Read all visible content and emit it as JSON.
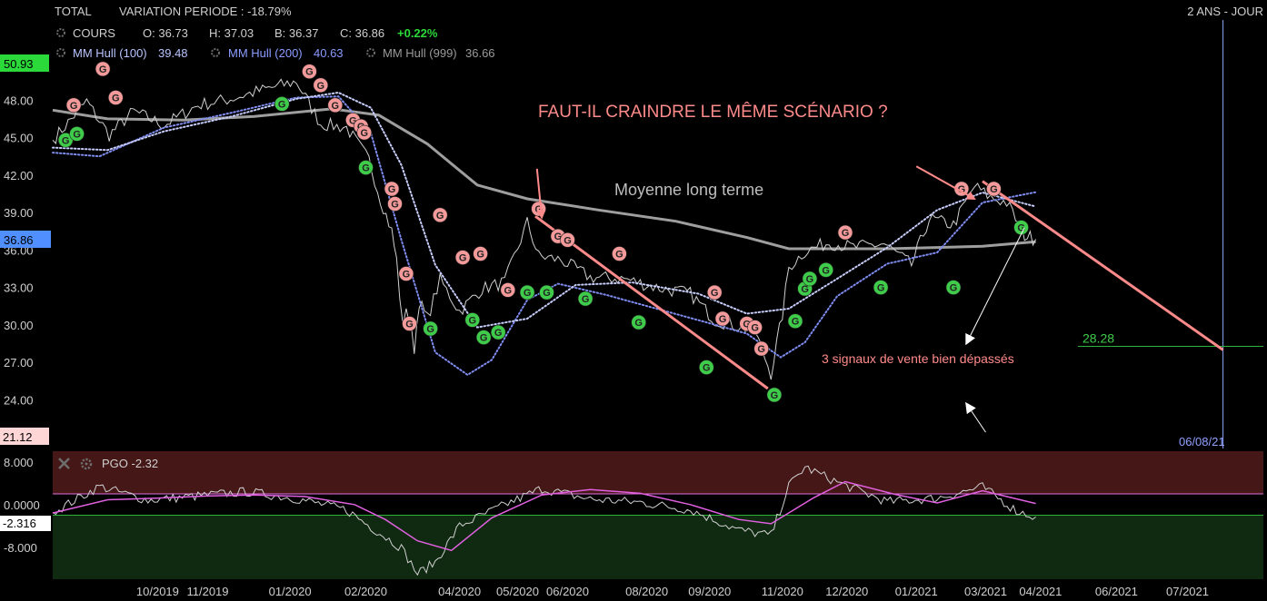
{
  "header": {
    "instrument": "TOTAL",
    "variation_label": "VARIATION PERIODE : -18.79%",
    "period": "2 ANS - JOUR"
  },
  "quote": {
    "cours_label": "COURS",
    "open": "O: 36.73",
    "high": "H: 37.03",
    "low": "B: 36.37",
    "close": "C: 36.86",
    "change": "+0.22%"
  },
  "indicators": [
    {
      "label": "MM Hull (100)",
      "value": "39.48",
      "color": "#b8c4ff"
    },
    {
      "label": "MM Hull (200)",
      "value": "40.63",
      "color": "#8a9cff"
    },
    {
      "label": "MM Hull (999)",
      "value": "36.66",
      "color": "#9a9a9a"
    }
  ],
  "price_tags": {
    "top": "50.93",
    "current": "36.86",
    "bottom": "21.12",
    "target": "28.28",
    "date_cursor": "06/08/21"
  },
  "annotations": {
    "question": "FAUT-IL CRAINDRE LE MÊME SCÉNARIO ?",
    "long_term": "Moyenne long terme",
    "sell_signals": "3 signaux de vente bien dépassés"
  },
  "pgo": {
    "title": "PGO -2.32",
    "current_tag": "-2.316",
    "ticks": [
      "8.000",
      "0.0000",
      "-8.000"
    ]
  },
  "colors": {
    "price": "#d0d0d0",
    "hull100": "#c7cdfa",
    "hull200": "#7f8cf0",
    "hull999": "#9e9e9e",
    "sell": "#f49a9a",
    "buy": "#3fcc4a",
    "trendline": "#ff8a8a",
    "pgo_line": "#d0d0d0",
    "pgo_signal": "#e060e0",
    "positive_tag": "#2bd93a",
    "current_tag": "#4f8fff"
  },
  "chart_data": [
    {
      "type": "line",
      "title": "TOTAL",
      "y_ticks": [
        "48.00",
        "45.00",
        "42.00",
        "39.00",
        "36.00",
        "33.00",
        "30.00",
        "27.00",
        "24.00"
      ],
      "x_ticks": [
        "10/2019",
        "11/2019",
        "01/2020",
        "02/2020",
        "04/2020",
        "05/2020",
        "06/2020",
        "08/2020",
        "09/2020",
        "11/2020",
        "12/2020",
        "01/2021",
        "03/2021",
        "04/2021",
        "06/2021",
        "07/2021"
      ],
      "ylim": [
        21.12,
        50.93
      ],
      "xlim": [
        "2019-08-12",
        "2021-08-31"
      ],
      "series": [
        {
          "key": "price",
          "x": [
            "2019-08-12",
            "2019-09-02",
            "2019-09-16",
            "2019-10-01",
            "2019-10-20",
            "2019-11-10",
            "2019-11-30",
            "2019-12-20",
            "2020-01-10",
            "2020-01-25",
            "2020-02-10",
            "2020-02-24",
            "2020-03-02",
            "2020-03-09",
            "2020-03-12",
            "2020-03-16",
            "2020-03-18",
            "2020-03-23",
            "2020-03-26",
            "2020-03-31",
            "2020-04-08",
            "2020-04-20",
            "2020-05-04",
            "2020-05-18",
            "2020-06-01",
            "2020-06-08",
            "2020-06-22",
            "2020-07-10",
            "2020-07-31",
            "2020-08-20",
            "2020-09-10",
            "2020-09-25",
            "2020-10-10",
            "2020-10-20",
            "2020-10-30",
            "2020-11-06",
            "2020-11-10",
            "2020-11-20",
            "2020-12-05",
            "2020-12-20",
            "2021-01-08",
            "2021-01-25",
            "2021-02-05",
            "2021-02-20",
            "2021-03-05",
            "2021-03-15",
            "2021-03-25",
            "2021-04-05",
            "2021-04-12"
          ],
          "y": [
            44.8,
            47.9,
            45.2,
            47.1,
            46.0,
            47.6,
            48.1,
            48.8,
            49.5,
            46.1,
            45.8,
            43.2,
            40.1,
            37.5,
            35.2,
            29.6,
            31.6,
            28.1,
            31.9,
            30.5,
            33.6,
            31.1,
            32.9,
            33.4,
            38.2,
            35.5,
            35.2,
            33.8,
            33.7,
            33.0,
            32.5,
            30.4,
            29.9,
            29.5,
            26.1,
            30.8,
            34.6,
            35.9,
            36.6,
            36.2,
            36.5,
            34.8,
            38.5,
            38.0,
            41.1,
            40.2,
            39.8,
            37.2,
            36.86
          ]
        },
        {
          "key": "hull100",
          "x": [
            "2019-08-12",
            "2019-09-15",
            "2019-10-20",
            "2019-12-01",
            "2020-01-10",
            "2020-02-05",
            "2020-02-25",
            "2020-03-15",
            "2020-04-05",
            "2020-05-01",
            "2020-06-01",
            "2020-07-01",
            "2020-08-05",
            "2020-09-15",
            "2020-10-15",
            "2020-11-10",
            "2020-12-10",
            "2021-01-10",
            "2021-02-10",
            "2021-03-10",
            "2021-04-12"
          ],
          "y": [
            44.2,
            44.0,
            45.5,
            46.7,
            48.1,
            48.6,
            47.4,
            42.8,
            34.8,
            29.8,
            30.5,
            33.2,
            33.4,
            32.5,
            30.9,
            31.3,
            33.7,
            36.2,
            39.2,
            40.6,
            39.48
          ]
        },
        {
          "key": "hull200",
          "x": [
            "2019-08-12",
            "2019-09-10",
            "2019-10-20",
            "2019-12-01",
            "2020-01-10",
            "2020-02-05",
            "2020-02-25",
            "2020-03-15",
            "2020-04-05",
            "2020-04-25",
            "2020-05-10",
            "2020-06-01",
            "2020-06-20",
            "2020-07-20",
            "2020-08-20",
            "2020-09-20",
            "2020-10-15",
            "2020-11-05",
            "2020-11-20",
            "2020-12-10",
            "2021-01-10",
            "2021-02-10",
            "2021-03-10",
            "2021-04-12"
          ],
          "y": [
            43.8,
            43.5,
            45.8,
            47.0,
            48.2,
            48.3,
            45.4,
            36.8,
            27.8,
            26.0,
            27.2,
            32.0,
            33.3,
            32.4,
            31.3,
            30.2,
            29.3,
            27.4,
            28.6,
            32.3,
            34.9,
            35.8,
            39.8,
            40.63
          ]
        },
        {
          "key": "hull999",
          "x": [
            "2019-08-12",
            "2019-09-15",
            "2019-11-01",
            "2019-12-15",
            "2020-02-01",
            "2020-03-01",
            "2020-03-31",
            "2020-05-01",
            "2020-06-01",
            "2020-07-15",
            "2020-09-01",
            "2020-10-15",
            "2020-11-10",
            "2020-12-10",
            "2021-01-10",
            "2021-02-10",
            "2021-03-10",
            "2021-04-12"
          ],
          "y": [
            47.2,
            46.5,
            46.4,
            46.7,
            47.3,
            46.8,
            44.5,
            41.2,
            40.1,
            39.2,
            38.3,
            37.0,
            36.1,
            36.1,
            36.1,
            36.2,
            36.3,
            36.66
          ]
        }
      ],
      "sell_signals": [
        {
          "x": "2019-08-25",
          "y": 47.6
        },
        {
          "x": "2019-09-12",
          "y": 50.5
        },
        {
          "x": "2019-09-20",
          "y": 48.2
        },
        {
          "x": "2020-01-18",
          "y": 50.3
        },
        {
          "x": "2020-01-25",
          "y": 49.2
        },
        {
          "x": "2020-02-03",
          "y": 47.6
        },
        {
          "x": "2020-02-14",
          "y": 46.4
        },
        {
          "x": "2020-02-19",
          "y": 45.9
        },
        {
          "x": "2020-02-21",
          "y": 45.4
        },
        {
          "x": "2020-03-09",
          "y": 40.9
        },
        {
          "x": "2020-03-11",
          "y": 39.7
        },
        {
          "x": "2020-03-18",
          "y": 34.1
        },
        {
          "x": "2020-03-20",
          "y": 30.1
        },
        {
          "x": "2020-04-08",
          "y": 38.8
        },
        {
          "x": "2020-04-22",
          "y": 35.4
        },
        {
          "x": "2020-05-03",
          "y": 35.7
        },
        {
          "x": "2020-05-20",
          "y": 32.8
        },
        {
          "x": "2020-06-08",
          "y": 39.3
        },
        {
          "x": "2020-06-20",
          "y": 37.1
        },
        {
          "x": "2020-06-26",
          "y": 36.8
        },
        {
          "x": "2020-07-28",
          "y": 35.7
        },
        {
          "x": "2020-09-25",
          "y": 32.6
        },
        {
          "x": "2020-09-30",
          "y": 30.5
        },
        {
          "x": "2020-10-15",
          "y": 30.1
        },
        {
          "x": "2020-10-20",
          "y": 29.8
        },
        {
          "x": "2020-10-24",
          "y": 28.1
        },
        {
          "x": "2020-12-15",
          "y": 37.4
        },
        {
          "x": "2021-02-25",
          "y": 40.9
        },
        {
          "x": "2021-03-17",
          "y": 40.9
        }
      ],
      "buy_signals": [
        {
          "x": "2019-08-20",
          "y": 44.8
        },
        {
          "x": "2019-08-27",
          "y": 45.3
        },
        {
          "x": "2020-01-01",
          "y": 47.7
        },
        {
          "x": "2020-02-22",
          "y": 42.6
        },
        {
          "x": "2020-04-02",
          "y": 29.7
        },
        {
          "x": "2020-04-28",
          "y": 30.4
        },
        {
          "x": "2020-05-05",
          "y": 29.0
        },
        {
          "x": "2020-05-14",
          "y": 29.4
        },
        {
          "x": "2020-06-01",
          "y": 32.6
        },
        {
          "x": "2020-06-13",
          "y": 32.6
        },
        {
          "x": "2020-07-07",
          "y": 32.1
        },
        {
          "x": "2020-08-09",
          "y": 30.2
        },
        {
          "x": "2020-09-20",
          "y": 26.6
        },
        {
          "x": "2020-11-01",
          "y": 24.4
        },
        {
          "x": "2020-11-14",
          "y": 30.3
        },
        {
          "x": "2020-11-20",
          "y": 32.9
        },
        {
          "x": "2020-11-23",
          "y": 33.7
        },
        {
          "x": "2020-12-03",
          "y": 34.4
        },
        {
          "x": "2021-01-06",
          "y": 33.0
        },
        {
          "x": "2021-02-20",
          "y": 33.0
        },
        {
          "x": "2021-04-03",
          "y": 37.8
        }
      ],
      "trendlines": [
        {
          "x": [
            "2020-06-06",
            "2020-10-28"
          ],
          "y": [
            38.7,
            24.9
          ]
        },
        {
          "x": [
            "2021-03-10",
            "2021-08-06"
          ],
          "y": [
            41.5,
            28.0
          ]
        }
      ],
      "arrows": [
        {
          "from": {
            "x": "2020-06-07",
            "y": 42.5
          },
          "to": {
            "x": "2020-06-10",
            "y": 38.6
          }
        },
        {
          "from": {
            "x": "2021-01-28",
            "y": 42.7
          },
          "to": {
            "x": "2021-03-05",
            "y": 40.1
          }
        },
        {
          "from": {
            "x": "2021-04-05",
            "y": 37.8
          },
          "to": {
            "x": "2021-02-28",
            "y": 28.5
          }
        },
        {
          "from": {
            "x": "2021-03-12",
            "y": 21.4
          },
          "to": {
            "x": "2021-02-28",
            "y": 23.7
          }
        }
      ],
      "target_level": 28.28,
      "date_cursor": "2021-08-06"
    },
    {
      "type": "line",
      "title": "PGO -2.32",
      "y_ticks": [
        "8.000",
        "0.0000",
        "-8.000"
      ],
      "ylim": [
        -14,
        10
      ],
      "bands": [
        {
          "from": 2.0,
          "to": 10
        },
        {
          "from": -2.0,
          "to": -14
        }
      ],
      "series": [
        {
          "key": "pgo",
          "x": [
            "2019-08-12",
            "2019-09-10",
            "2019-10-10",
            "2019-11-10",
            "2019-12-10",
            "2020-01-10",
            "2020-02-10",
            "2020-02-25",
            "2020-03-15",
            "2020-03-25",
            "2020-04-05",
            "2020-04-20",
            "2020-05-20",
            "2020-06-10",
            "2020-07-10",
            "2020-08-10",
            "2020-09-10",
            "2020-10-10",
            "2020-10-30",
            "2020-11-10",
            "2020-11-20",
            "2020-12-10",
            "2021-01-10",
            "2021-02-10",
            "2021-03-10",
            "2021-03-31",
            "2021-04-12"
          ],
          "y": [
            -1.5,
            3.4,
            0.8,
            1.6,
            2.4,
            1.1,
            -1.0,
            -4.2,
            -8.1,
            -13.0,
            -10.8,
            -4.0,
            0.2,
            3.0,
            1.0,
            0.4,
            -1.0,
            -4.8,
            -5.8,
            3.5,
            7.0,
            4.2,
            0.5,
            1.2,
            3.3,
            -1.2,
            -2.32
          ]
        },
        {
          "key": "pgo_signal",
          "x": [
            "2019-08-12",
            "2019-09-15",
            "2019-10-15",
            "2019-11-15",
            "2019-12-15",
            "2020-01-15",
            "2020-02-15",
            "2020-03-05",
            "2020-03-25",
            "2020-04-15",
            "2020-05-10",
            "2020-06-10",
            "2020-07-10",
            "2020-08-10",
            "2020-09-10",
            "2020-10-10",
            "2020-10-30",
            "2020-11-25",
            "2020-12-15",
            "2021-01-15",
            "2021-02-10",
            "2021-03-10",
            "2021-04-12"
          ],
          "y": [
            -1.6,
            0.9,
            1.2,
            1.6,
            1.8,
            1.5,
            0.0,
            -2.8,
            -6.8,
            -8.6,
            -2.5,
            1.8,
            2.8,
            2.1,
            0.0,
            -2.8,
            -3.6,
            1.2,
            4.3,
            1.9,
            0.3,
            2.6,
            0.2
          ]
        }
      ]
    }
  ]
}
